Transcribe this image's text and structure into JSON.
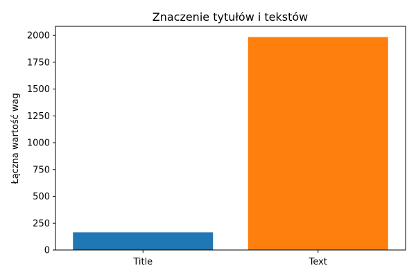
{
  "chart_data": {
    "type": "bar",
    "title": "Znaczenie tytułów i tekstów",
    "xlabel": "",
    "ylabel": "Łączna wartość wag",
    "categories": [
      "Title",
      "Text"
    ],
    "values": [
      165,
      1985
    ],
    "colors": [
      "#1f77b4",
      "#ff7f0e"
    ],
    "ylim": [
      0,
      2085
    ],
    "yticks": [
      0,
      250,
      500,
      750,
      1000,
      1250,
      1500,
      1750,
      2000
    ],
    "grid": false,
    "legend": "none"
  }
}
